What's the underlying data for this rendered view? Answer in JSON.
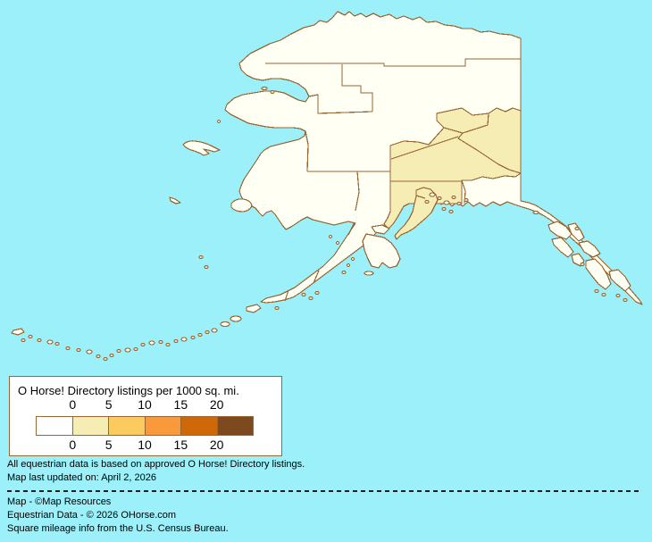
{
  "legend": {
    "title": "O Horse! Directory listings per 1000 sq. mi.",
    "tick_labels": [
      "0",
      "5",
      "10",
      "15",
      "20"
    ],
    "ramp_colors": [
      "#ffffff",
      "#f5edb4",
      "#fbcb60",
      "#f8993b",
      "#ce6808",
      "#7c4a1e"
    ]
  },
  "notes": {
    "line1": "All equestrian data is based on approved O Horse! Directory listings.",
    "line2": "Map last updated on: April 2, 2026"
  },
  "credits": {
    "line1": "Map - ©Map Resources",
    "line2": "Equestrian Data - © 2026 OHorse.com",
    "line3": "Square mileage info from the U.S. Census Bureau."
  },
  "colors": {
    "ocean": "#9bf0f9",
    "land": "#fffff4",
    "low_value_region": "#f5edb4",
    "map_border": "#996633",
    "text": "#000000"
  }
}
